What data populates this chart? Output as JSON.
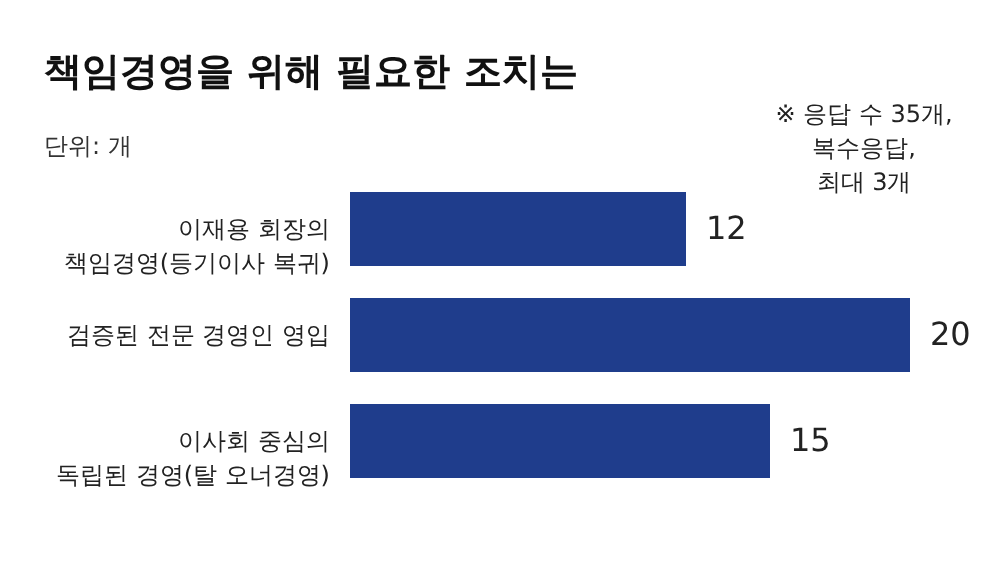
{
  "chart_data": {
    "type": "bar",
    "orientation": "horizontal",
    "title": "책임경영을 위해 필요한 조치는",
    "subtitle": "단위: 개",
    "categories": [
      "이재용 회장의\n책임경영(등기이사 복귀)",
      "검증된 전문 경영인 영입",
      "이사회 중심의\n독립된 경영(탈 오너경영)"
    ],
    "values": [
      12,
      20,
      15
    ],
    "color": "#1f3d8c",
    "data_labels": true,
    "grid": false,
    "annotations": [
      "※ 응답 수 35개,\n복수응답,\n최대 3개"
    ]
  }
}
